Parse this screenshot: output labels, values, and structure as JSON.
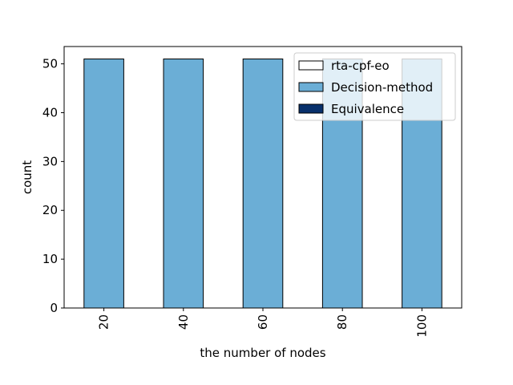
{
  "chart_data": {
    "type": "bar",
    "stacked": true,
    "categories": [
      "20",
      "40",
      "60",
      "80",
      "100"
    ],
    "series": [
      {
        "name": "rta-cpf-eo",
        "values": [
          0,
          0,
          0,
          0,
          0
        ],
        "color": "#ffffff"
      },
      {
        "name": "Decision-method",
        "values": [
          51,
          51,
          51,
          51,
          51
        ],
        "color": "#6baed6"
      },
      {
        "name": "Equivalence",
        "values": [
          0,
          0,
          0,
          0,
          0
        ],
        "color": "#08306b"
      }
    ],
    "xlabel": "the number of nodes",
    "ylabel": "count",
    "ylim": [
      0,
      53.55
    ],
    "yticks": [
      0,
      10,
      20,
      30,
      40,
      50
    ],
    "grid": false,
    "legend_position": "top-right"
  }
}
